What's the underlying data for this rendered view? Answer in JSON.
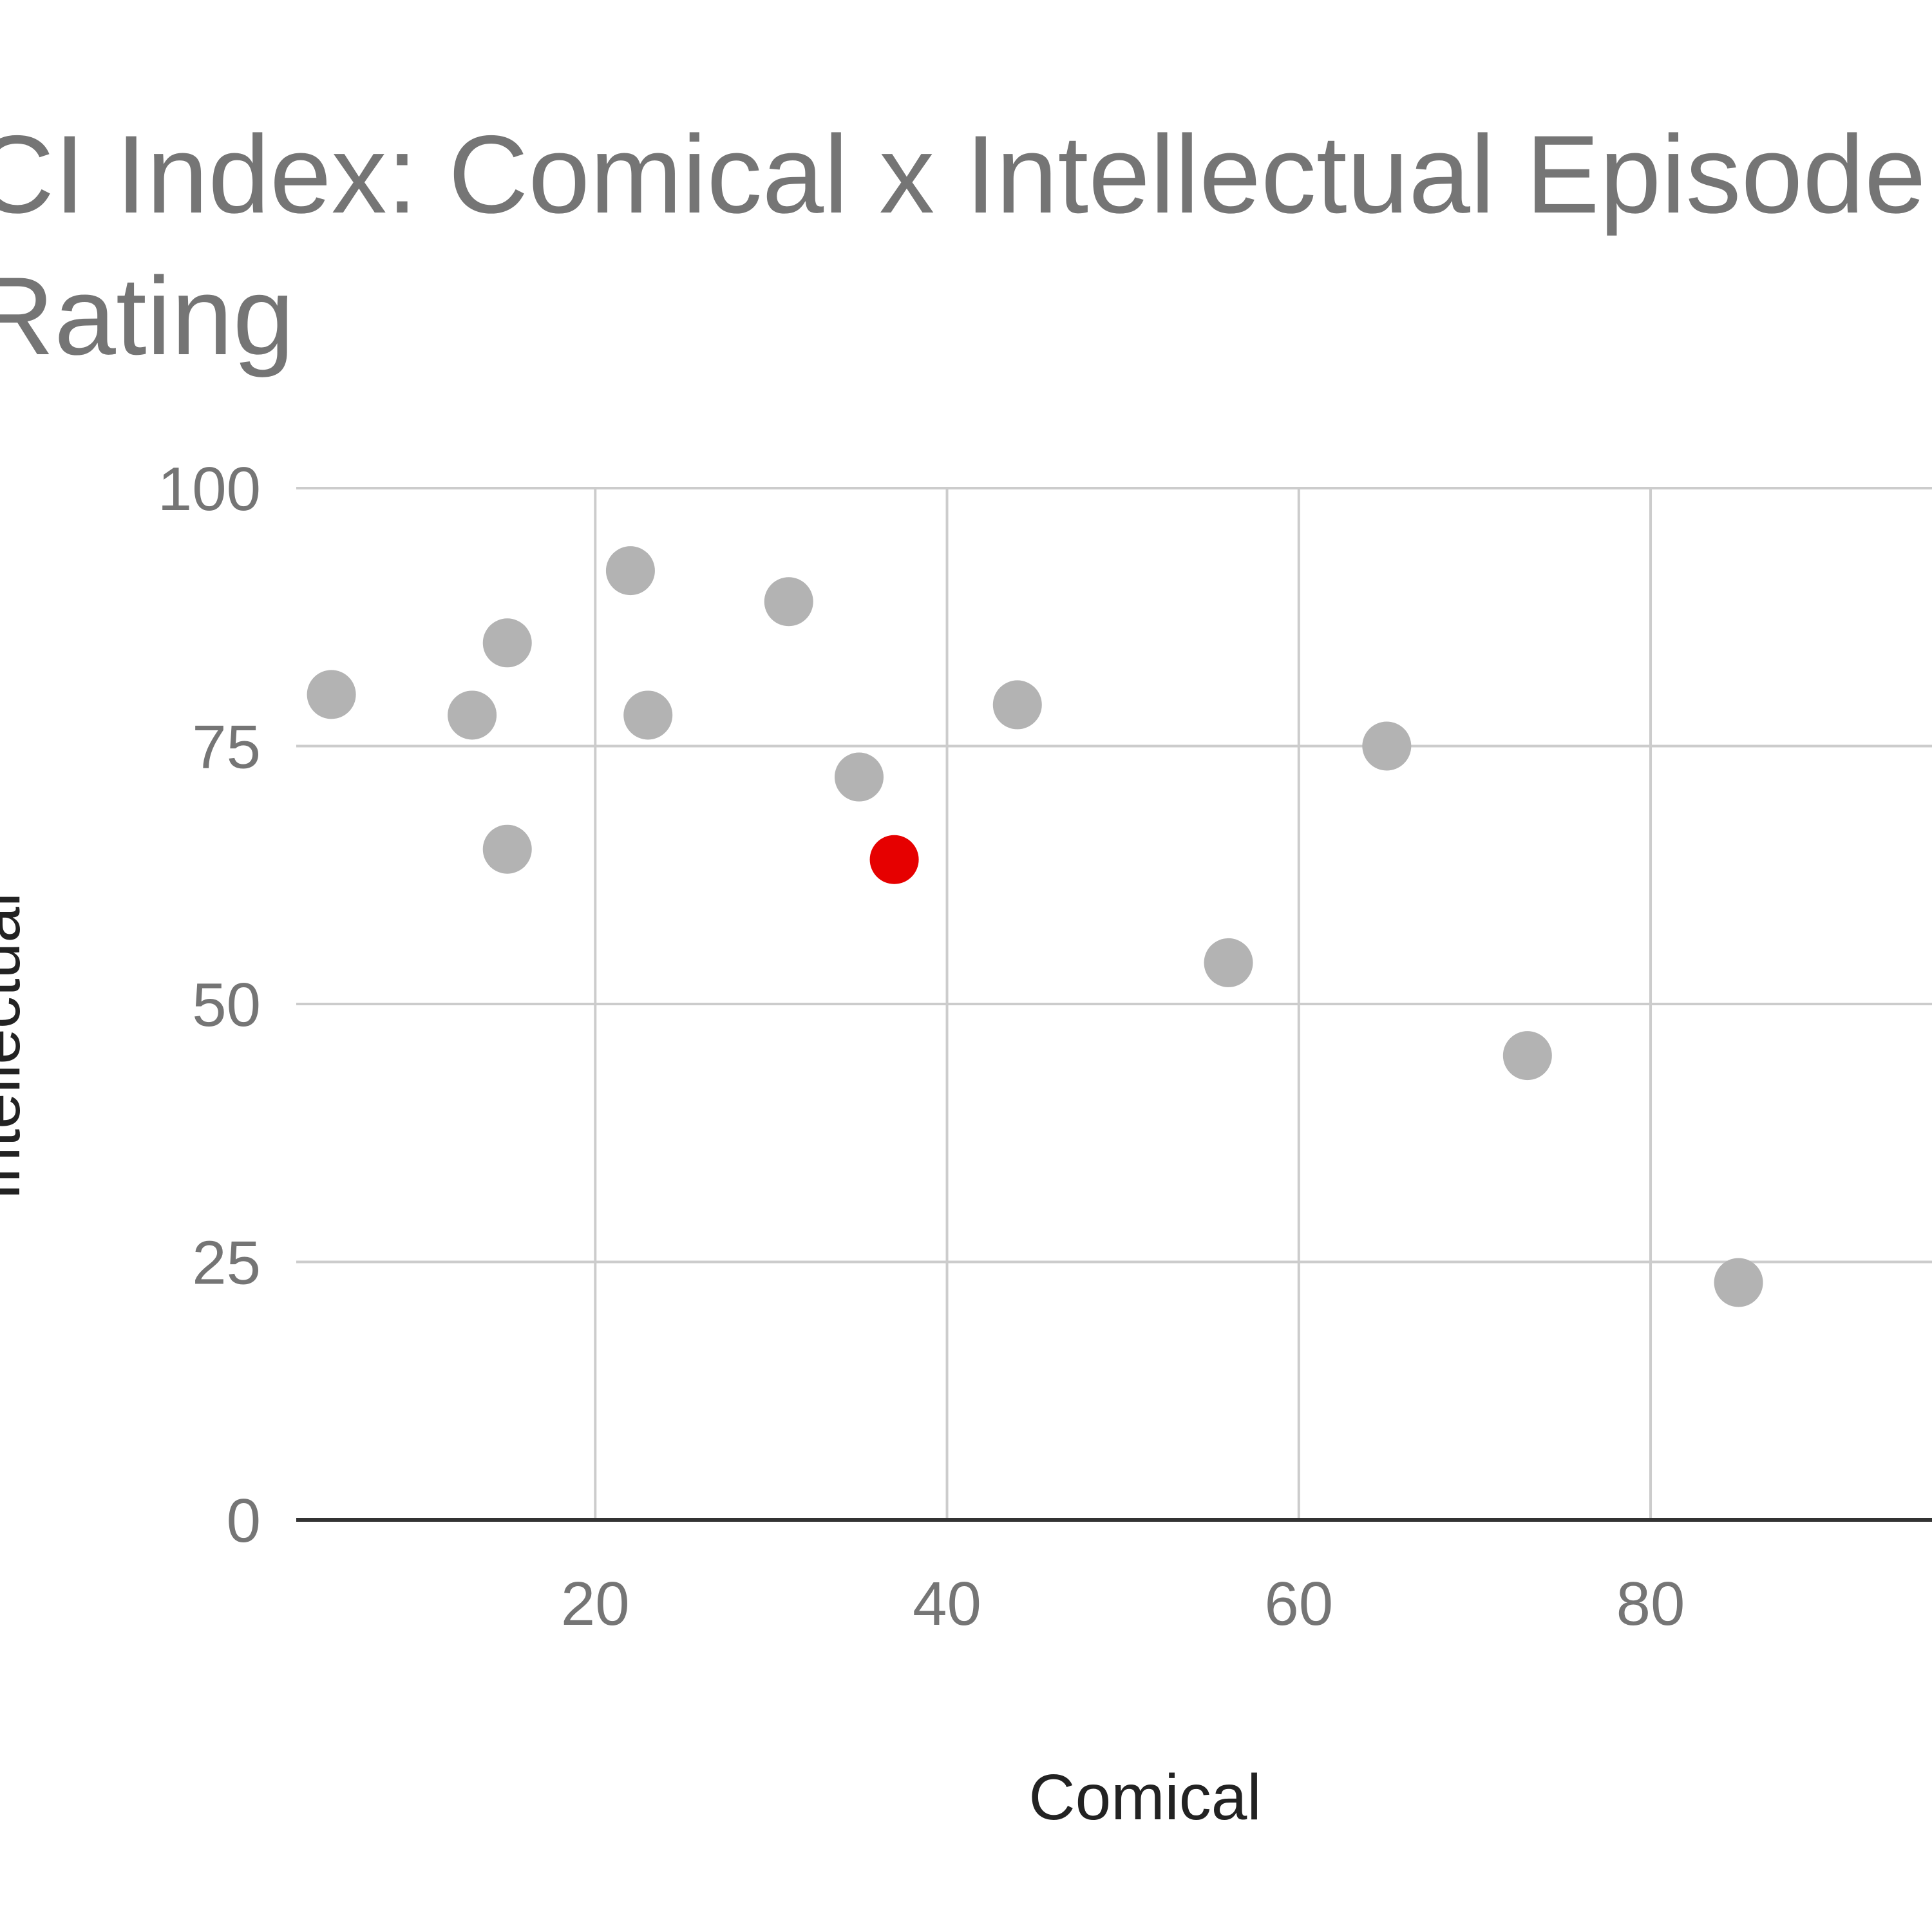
{
  "chart_data": {
    "type": "scatter",
    "title": "CI Index: Comical x Intellectual Episode Rating",
    "title_lines": [
      "CI Index: Comical x Intellectual Episode",
      "Rating"
    ],
    "xlabel": "Comical",
    "ylabel": "Intellectual",
    "xlim": [
      3,
      96
    ],
    "ylim": [
      0,
      100
    ],
    "x_ticks": [
      20,
      40,
      60,
      80
    ],
    "y_ticks": [
      0,
      25,
      50,
      75,
      100
    ],
    "grid": true,
    "legend": "none",
    "colors": {
      "point": "#b3b3b3",
      "highlight": "#e60000",
      "grid": "#cccccc",
      "baseline": "#333333",
      "title": "#757575",
      "ticks": "#757575",
      "axis_title": "#222222"
    },
    "points": [
      {
        "x": 5,
        "y": 80,
        "highlight": false
      },
      {
        "x": 13,
        "y": 78,
        "highlight": false
      },
      {
        "x": 15,
        "y": 85,
        "highlight": false
      },
      {
        "x": 15,
        "y": 65,
        "highlight": false
      },
      {
        "x": 22,
        "y": 92,
        "highlight": false
      },
      {
        "x": 23,
        "y": 78,
        "highlight": false
      },
      {
        "x": 31,
        "y": 89,
        "highlight": false
      },
      {
        "x": 35,
        "y": 72,
        "highlight": false
      },
      {
        "x": 37,
        "y": 64,
        "highlight": true
      },
      {
        "x": 44,
        "y": 79,
        "highlight": false
      },
      {
        "x": 56,
        "y": 54,
        "highlight": false
      },
      {
        "x": 65,
        "y": 75,
        "highlight": false
      },
      {
        "x": 73,
        "y": 45,
        "highlight": false
      },
      {
        "x": 85,
        "y": 23,
        "highlight": false
      }
    ]
  }
}
